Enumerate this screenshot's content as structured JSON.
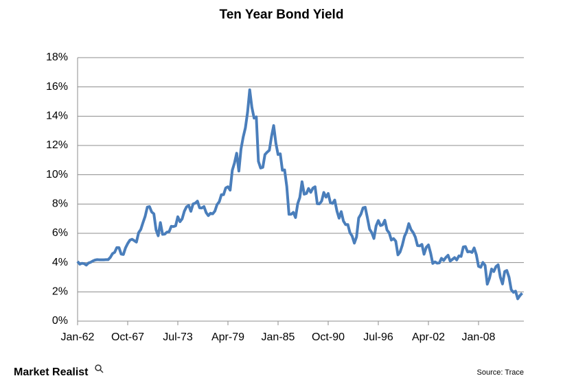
{
  "chart_data": {
    "type": "line",
    "title": "Ten Year Bond Yield",
    "categories": [
      "Jan-62",
      "Apr-62",
      "Jul-62",
      "Oct-62",
      "Jan-63",
      "Apr-63",
      "Jul-63",
      "Oct-63",
      "Jan-64",
      "Apr-64",
      "Jul-64",
      "Oct-64",
      "Jan-65",
      "Apr-65",
      "Jul-65",
      "Oct-65",
      "Jan-66",
      "Apr-66",
      "Jul-66",
      "Oct-66",
      "Jan-67",
      "Apr-67",
      "Jul-67",
      "Oct-67",
      "Jan-68",
      "Apr-68",
      "Jul-68",
      "Oct-68",
      "Jan-69",
      "Apr-69",
      "Jul-69",
      "Oct-69",
      "Jan-70",
      "Apr-70",
      "Jul-70",
      "Oct-70",
      "Jan-71",
      "Apr-71",
      "Jul-71",
      "Oct-71",
      "Jan-72",
      "Apr-72",
      "Jul-72",
      "Oct-72",
      "Jan-73",
      "Apr-73",
      "Jul-73",
      "Oct-73",
      "Jan-74",
      "Apr-74",
      "Jul-74",
      "Oct-74",
      "Jan-75",
      "Apr-75",
      "Jul-75",
      "Oct-75",
      "Jan-76",
      "Apr-76",
      "Jul-76",
      "Oct-76",
      "Jan-77",
      "Apr-77",
      "Jul-77",
      "Oct-77",
      "Jan-78",
      "Apr-78",
      "Jul-78",
      "Oct-78",
      "Jan-79",
      "Apr-79",
      "Jul-79",
      "Oct-79",
      "Jan-80",
      "Apr-80",
      "Jul-80",
      "Oct-80",
      "Jan-81",
      "Apr-81",
      "Jul-81",
      "Oct-81",
      "Jan-82",
      "Apr-82",
      "Jul-82",
      "Oct-82",
      "Jan-83",
      "Apr-83",
      "Jul-83",
      "Oct-83",
      "Jan-84",
      "Apr-84",
      "Jul-84",
      "Oct-84",
      "Jan-85",
      "Apr-85",
      "Jul-85",
      "Oct-85",
      "Jan-86",
      "Apr-86",
      "Jul-86",
      "Oct-86",
      "Jan-87",
      "Apr-87",
      "Jul-87",
      "Oct-87",
      "Jan-88",
      "Apr-88",
      "Jul-88",
      "Oct-88",
      "Jan-89",
      "Apr-89",
      "Jul-89",
      "Oct-89",
      "Jan-90",
      "Apr-90",
      "Jul-90",
      "Oct-90",
      "Jan-91",
      "Apr-91",
      "Jul-91",
      "Oct-91",
      "Jan-92",
      "Apr-92",
      "Jul-92",
      "Oct-92",
      "Jan-93",
      "Apr-93",
      "Jul-93",
      "Oct-93",
      "Jan-94",
      "Apr-94",
      "Jul-94",
      "Oct-94",
      "Jan-95",
      "Apr-95",
      "Jul-95",
      "Oct-95",
      "Jan-96",
      "Apr-96",
      "Jul-96",
      "Oct-96",
      "Jan-97",
      "Apr-97",
      "Jul-97",
      "Oct-97",
      "Jan-98",
      "Apr-98",
      "Jul-98",
      "Oct-98",
      "Jan-99",
      "Apr-99",
      "Jul-99",
      "Oct-99",
      "Jan-00",
      "Apr-00",
      "Jul-00",
      "Oct-00",
      "Jan-01",
      "Apr-01",
      "Jul-01",
      "Oct-01",
      "Jan-02",
      "Apr-02",
      "Jul-02",
      "Oct-02",
      "Jan-03",
      "Apr-03",
      "Jul-03",
      "Oct-03",
      "Jan-04",
      "Apr-04",
      "Jul-04",
      "Oct-04",
      "Jan-05",
      "Apr-05",
      "Jul-05",
      "Oct-05",
      "Jan-06",
      "Apr-06",
      "Jul-06",
      "Oct-06",
      "Jan-07",
      "Apr-07",
      "Jul-07",
      "Oct-07",
      "Jan-08",
      "Apr-08",
      "Jul-08",
      "Oct-08",
      "Jan-09",
      "Apr-09",
      "Jul-09",
      "Oct-09",
      "Jan-10",
      "Apr-10",
      "Jul-10",
      "Oct-10",
      "Jan-11",
      "Apr-11",
      "Jul-11",
      "Oct-11",
      "Jan-12",
      "Apr-12",
      "Jul-12",
      "Oct-12",
      "Jan-13"
    ],
    "series": [
      {
        "name": "Ten Year Bond Yield",
        "color": "#4a7ebb",
        "values": [
          4.08,
          3.89,
          3.95,
          3.93,
          3.83,
          3.97,
          4.02,
          4.11,
          4.17,
          4.2,
          4.19,
          4.19,
          4.19,
          4.2,
          4.2,
          4.35,
          4.61,
          4.7,
          5.02,
          5.02,
          4.58,
          4.55,
          5.0,
          5.3,
          5.53,
          5.59,
          5.5,
          5.4,
          6.04,
          6.26,
          6.72,
          7.16,
          7.79,
          7.83,
          7.46,
          7.33,
          6.24,
          5.83,
          6.73,
          5.93,
          5.95,
          6.08,
          6.11,
          6.48,
          6.46,
          6.51,
          7.13,
          6.79,
          6.99,
          7.51,
          7.81,
          7.9,
          7.5,
          8.0,
          8.06,
          8.2,
          7.74,
          7.73,
          7.83,
          7.41,
          7.21,
          7.37,
          7.33,
          7.52,
          7.96,
          8.15,
          8.64,
          8.64,
          9.1,
          9.18,
          8.95,
          10.3,
          10.8,
          11.47,
          10.25,
          11.75,
          12.57,
          13.2,
          14.28,
          15.8,
          14.59,
          13.87,
          13.95,
          10.91,
          10.46,
          10.51,
          11.38,
          11.54,
          11.67,
          12.63,
          13.36,
          12.16,
          11.38,
          11.43,
          10.31,
          10.33,
          9.19,
          7.3,
          7.3,
          7.43,
          7.08,
          8.02,
          8.45,
          9.52,
          8.67,
          8.72,
          9.06,
          8.8,
          9.09,
          9.18,
          8.02,
          8.01,
          8.21,
          8.79,
          8.47,
          8.72,
          8.09,
          8.04,
          8.27,
          7.53,
          7.03,
          7.48,
          6.84,
          6.59,
          6.6,
          6.04,
          5.81,
          5.33,
          5.75,
          7.04,
          7.3,
          7.74,
          7.78,
          7.06,
          6.28,
          6.04,
          5.65,
          6.51,
          6.87,
          6.53,
          6.58,
          6.89,
          6.22,
          6.03,
          5.54,
          5.64,
          5.46,
          4.53,
          4.72,
          5.18,
          5.79,
          6.11,
          6.66,
          6.26,
          6.05,
          5.74,
          5.16,
          5.14,
          5.24,
          4.57,
          5.04,
          5.21,
          4.65,
          3.94,
          4.05,
          3.96,
          3.98,
          4.29,
          4.15,
          4.35,
          4.5,
          4.1,
          4.22,
          4.34,
          4.18,
          4.46,
          4.42,
          5.07,
          5.09,
          4.73,
          4.76,
          4.69,
          5.0,
          4.53,
          3.74,
          3.68,
          4.01,
          3.81,
          2.52,
          2.93,
          3.56,
          3.39,
          3.73,
          3.85,
          3.01,
          2.54,
          3.39,
          3.46,
          3.0,
          2.15,
          1.97,
          2.05,
          1.53,
          1.75,
          1.91
        ]
      }
    ],
    "xticks": [
      "Jan-62",
      "Oct-67",
      "Jul-73",
      "Apr-79",
      "Jan-85",
      "Oct-90",
      "Jul-96",
      "Apr-02",
      "Jan-08"
    ],
    "ylim": [
      0,
      18
    ],
    "yticks": [
      {
        "value": 0,
        "label": "0%"
      },
      {
        "value": 2,
        "label": "2%"
      },
      {
        "value": 4,
        "label": "4%"
      },
      {
        "value": 6,
        "label": "6%"
      },
      {
        "value": 8,
        "label": "8%"
      },
      {
        "value": 10,
        "label": "10%"
      },
      {
        "value": 12,
        "label": "12%"
      },
      {
        "value": 14,
        "label": "14%"
      },
      {
        "value": 16,
        "label": "16%"
      },
      {
        "value": 18,
        "label": "18%"
      }
    ],
    "grid": true,
    "brand": "Market Realist",
    "source": "Source: Trace"
  }
}
